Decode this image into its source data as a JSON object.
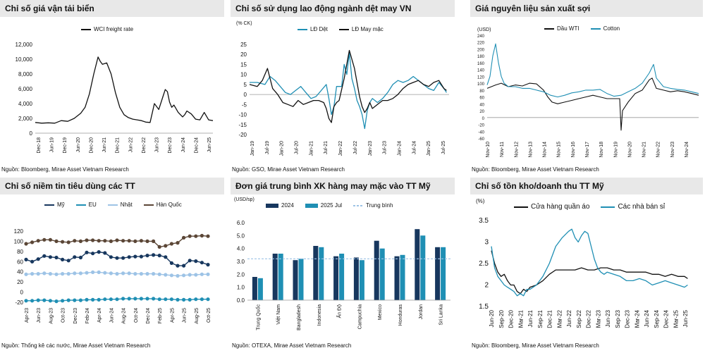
{
  "chart_data": [
    {
      "id": "p1",
      "type": "line",
      "title": "Chỉ số giá vận tải biển",
      "source": "Nguồn: Bloomberg, Mirae Asset Vietnam Research",
      "legend": [
        "WCI freight rate"
      ],
      "ylim": [
        0,
        12000
      ],
      "yticks": [
        0,
        2000,
        4000,
        6000,
        8000,
        10000,
        12000
      ],
      "ytick_labels": [
        "0",
        "2,000",
        "4,000",
        "6,000",
        "8,000",
        "10,000",
        "12,000"
      ],
      "xlim": [
        0,
        82
      ],
      "xtick_labels": [
        "Dec-18",
        "Jun-19",
        "Dec-19",
        "Jun-20",
        "Dec-20",
        "Jun-21",
        "Dec-21",
        "Jun-22",
        "Dec-22",
        "Jun-23",
        "Dec-23",
        "Jun-24",
        "Dec-24",
        "Jun-25"
      ],
      "colors": [
        "#111111"
      ],
      "series": [
        {
          "name": "WCI freight rate",
          "x": [
            0,
            3,
            6,
            9,
            12,
            15,
            18,
            21,
            23,
            25,
            27,
            29,
            30,
            31,
            33,
            35,
            37,
            39,
            41,
            43,
            45,
            47,
            49,
            51,
            53,
            55,
            57,
            59,
            60,
            61,
            62,
            63,
            64,
            66,
            68,
            69,
            70,
            72,
            74,
            76,
            78,
            80,
            82
          ],
          "y": [
            1450,
            1350,
            1400,
            1350,
            1700,
            1600,
            2000,
            2700,
            3500,
            5300,
            8000,
            10300,
            9700,
            9300,
            9500,
            8000,
            5500,
            3500,
            2500,
            2100,
            1900,
            1800,
            1700,
            1500,
            1450,
            4000,
            3200,
            5000,
            5900,
            5600,
            4200,
            3500,
            3800,
            2800,
            2200,
            2500,
            3000,
            2600,
            1900,
            1800,
            2800,
            1800,
            1700
          ]
        }
      ]
    },
    {
      "id": "p2",
      "type": "line",
      "title": "Chỉ số sử dụng lao động ngành dệt may VN",
      "source": "Nguồn: GSO, Mirae Asset Vietnam Research",
      "unit": "(% CK)",
      "legend": [
        "LĐ Dệt",
        "LĐ May mặc"
      ],
      "ylim": [
        -20,
        25
      ],
      "yticks": [
        -20,
        -15,
        -10,
        -5,
        0,
        5,
        10,
        15,
        20,
        25
      ],
      "ytick_labels": [
        "-20",
        "-15",
        "-10",
        "-5",
        "0",
        "5",
        "10",
        "15",
        "20",
        "25"
      ],
      "xlim": [
        0,
        78
      ],
      "xtick_labels": [
        "Jan-19",
        "Jul-19",
        "Jan-20",
        "Jul-20",
        "Jan-21",
        "Jul-21",
        "Jan-22",
        "Jul-22",
        "Jan-23",
        "Jul-23",
        "Jan-24",
        "Jul-24",
        "Jan-25",
        "Jul-25"
      ],
      "colors": [
        "#1f8fb4",
        "#111111"
      ],
      "series": [
        {
          "name": "LĐ Dệt",
          "x": [
            0,
            3,
            6,
            8,
            10,
            12,
            14,
            16,
            18,
            20,
            22,
            24,
            26,
            28,
            30,
            31,
            32,
            33,
            34,
            36,
            37,
            38,
            39,
            40,
            41,
            42,
            43,
            44,
            45,
            46,
            47,
            48,
            50,
            52,
            54,
            56,
            58,
            60,
            62,
            64,
            66,
            68,
            70,
            72,
            74,
            76,
            77
          ],
          "y": [
            6,
            6,
            5,
            9,
            7,
            4,
            1,
            0,
            2,
            4,
            1,
            -2,
            -1,
            2,
            5,
            -2,
            -10,
            -6,
            4,
            4,
            15,
            10,
            21,
            8,
            3,
            -3,
            -6,
            -10,
            -17,
            -8,
            -4,
            -2,
            -4,
            -2,
            1,
            5,
            7,
            6,
            7,
            9,
            7,
            5,
            3,
            2,
            6,
            3,
            1
          ]
        },
        {
          "name": "LĐ May mặc",
          "x": [
            0,
            3,
            5,
            7,
            9,
            11,
            13,
            15,
            17,
            19,
            21,
            23,
            25,
            27,
            29,
            30,
            31,
            32,
            33,
            34,
            35,
            37,
            39,
            41,
            43,
            44,
            45,
            46,
            47,
            48,
            50,
            52,
            54,
            56,
            58,
            60,
            62,
            64,
            66,
            68,
            70,
            72,
            74,
            76,
            77
          ],
          "y": [
            5,
            4,
            7,
            13,
            3,
            0,
            -4,
            -5,
            -6,
            -3,
            -5,
            -4,
            -3,
            -3,
            -4,
            -7,
            -12,
            -14,
            -6,
            -4,
            -3,
            8,
            22,
            13,
            -1,
            -6,
            -9,
            -7,
            -4,
            -7,
            -5,
            -3,
            -3,
            -2,
            0,
            3,
            5,
            6,
            7,
            5,
            4,
            6,
            7,
            3,
            2
          ]
        }
      ]
    },
    {
      "id": "p3",
      "type": "line",
      "title": "Giá nguyên liệu sản xuất sợi",
      "source": "Nguồn: Bloomberg, Mirae Asset Vietnam Research",
      "unit": "(USD)",
      "legend": [
        "Dầu WTI",
        "Cotton"
      ],
      "ylim": [
        -60,
        240
      ],
      "yticks": [
        -60,
        -40,
        -20,
        0,
        20,
        40,
        60,
        80,
        100,
        120,
        140,
        160,
        180,
        200,
        220,
        240
      ],
      "ytick_labels": [
        "-60",
        "-40",
        "-20",
        "0",
        "20",
        "40",
        "60",
        "80",
        "100",
        "120",
        "140",
        "160",
        "180",
        "200",
        "220",
        "240"
      ],
      "xlim": [
        0,
        15
      ],
      "xtick_labels": [
        "Nov-10",
        "Nov-11",
        "Nov-12",
        "Nov-13",
        "Nov-14",
        "Nov-15",
        "Nov-16",
        "Nov-17",
        "Nov-18",
        "Nov-19",
        "Nov-20",
        "Nov-21",
        "Nov-22",
        "Nov-23",
        "Nov-24"
      ],
      "colors": [
        "#111111",
        "#1f8fb4"
      ],
      "series": [
        {
          "name": "Dầu WTI",
          "x": [
            0,
            0.3,
            0.6,
            1,
            1.5,
            2,
            2.5,
            3,
            3.5,
            4,
            4.3,
            4.6,
            5,
            5.5,
            6,
            6.5,
            7,
            7.5,
            8,
            8.5,
            9,
            9.4,
            9.5,
            9.6,
            10,
            10.5,
            11,
            11.5,
            11.7,
            12,
            12.5,
            13,
            13.5,
            14,
            14.5,
            15
          ],
          "y": [
            85,
            90,
            95,
            100,
            90,
            95,
            92,
            100,
            98,
            80,
            60,
            45,
            40,
            45,
            50,
            55,
            60,
            65,
            60,
            55,
            55,
            55,
            -37,
            20,
            45,
            70,
            80,
            110,
            115,
            85,
            80,
            75,
            78,
            75,
            70,
            65
          ]
        },
        {
          "name": "Cotton",
          "x": [
            0,
            0.2,
            0.4,
            0.6,
            0.8,
            1,
            1.2,
            1.5,
            2,
            2.5,
            3,
            3.5,
            4,
            4.5,
            5,
            5.5,
            6,
            6.5,
            7,
            7.5,
            8,
            8.5,
            9,
            9.5,
            10,
            10.5,
            11,
            11.5,
            11.8,
            12,
            12.5,
            13,
            13.5,
            14,
            14.5,
            15
          ],
          "y": [
            95,
            120,
            180,
            215,
            160,
            120,
            100,
            90,
            90,
            85,
            85,
            80,
            75,
            65,
            60,
            65,
            72,
            75,
            80,
            80,
            82,
            70,
            62,
            65,
            75,
            85,
            100,
            130,
            155,
            115,
            90,
            85,
            82,
            80,
            75,
            70
          ]
        }
      ]
    },
    {
      "id": "p4",
      "type": "line",
      "title": "Chỉ số niềm tin tiêu dùng các TT",
      "source": "Nguồn: Thống kê các nước, Mirae Asset Vietnam Research",
      "legend": [
        "Mỹ",
        "EU",
        "Nhật",
        "Hàn Quốc"
      ],
      "ylim": [
        -20,
        120
      ],
      "yticks": [
        -20,
        0,
        20,
        40,
        60,
        80,
        100,
        120
      ],
      "ytick_labels": [
        "-20",
        "0",
        "20",
        "40",
        "60",
        "80",
        "100",
        "120"
      ],
      "xlim": [
        0,
        30
      ],
      "xtick_labels": [
        "Apr-23",
        "Jun-23",
        "Aug-23",
        "Oct-23",
        "Dec-23",
        "Feb-24",
        "Apr-24",
        "Jun-24",
        "Aug-24",
        "Oct-24",
        "Dec-24",
        "Feb-25",
        "Apr-25",
        "Jun-25",
        "Aug-25",
        "Oct-25"
      ],
      "colors": [
        "#17375e",
        "#1f8fb4",
        "#9dc3e6",
        "#5b4636"
      ],
      "series": [
        {
          "name": "Mỹ",
          "y": [
            64,
            60,
            65,
            71,
            69,
            68,
            64,
            62,
            69,
            68,
            78,
            76,
            79,
            77,
            69,
            67,
            67,
            69,
            70,
            70,
            72,
            73,
            72,
            69,
            57,
            52,
            52,
            62,
            61,
            58,
            54
          ]
        },
        {
          "name": "EU",
          "y": [
            -17,
            -17,
            -16,
            -16,
            -17,
            -18,
            -17,
            -16,
            -16,
            -16,
            -15,
            -15,
            -15,
            -14,
            -14,
            -14,
            -13,
            -13,
            -13,
            -13,
            -13,
            -13,
            -14,
            -14,
            -14,
            -15,
            -15,
            -15,
            -14,
            -14,
            -14
          ]
        },
        {
          "name": "Nhật",
          "y": [
            35,
            36,
            36,
            37,
            36,
            35,
            36,
            36,
            37,
            37,
            38,
            39,
            39,
            38,
            37,
            36,
            37,
            37,
            36,
            36,
            36,
            36,
            35,
            34,
            33,
            32,
            33,
            34,
            34,
            35,
            35
          ]
        },
        {
          "name": "Hàn Quốc",
          "y": [
            95,
            98,
            101,
            103,
            103,
            100,
            99,
            98,
            101,
            100,
            102,
            102,
            101,
            101,
            100,
            102,
            101,
            101,
            100,
            101,
            100,
            100,
            89,
            91,
            95,
            97,
            107,
            110,
            110,
            111,
            110
          ]
        }
      ]
    },
    {
      "id": "p5",
      "type": "bar",
      "title": "Đơn giá trung bình XK hàng may mặc vào TT Mỹ",
      "source": "Nguồn: OTEXA, Mirae Asset Vietnam Research",
      "unit": "(USD/sp)",
      "legend": [
        "2024",
        "2025 Jul",
        "Trung bình"
      ],
      "ylim": [
        0,
        6
      ],
      "yticks": [
        0,
        1,
        2,
        3,
        4,
        5,
        6
      ],
      "ytick_labels": [
        "0.0",
        "1.0",
        "2.0",
        "3.0",
        "4.0",
        "5.0",
        "6.0"
      ],
      "categories": [
        "Trung Quốc",
        "Việt Nam",
        "Bangladesh",
        "Indonesia",
        "Ấn Độ",
        "Campuchia",
        "Mexico",
        "Honduras",
        "Jordan",
        "Sri Lanka"
      ],
      "colors": [
        "#17375e",
        "#1f8fb4",
        "#9dc3e6"
      ],
      "series": [
        {
          "name": "2024",
          "values": [
            1.8,
            3.6,
            3.1,
            4.2,
            3.4,
            3.3,
            4.6,
            3.4,
            5.5,
            4.1
          ]
        },
        {
          "name": "2025 Jul",
          "values": [
            1.7,
            3.6,
            3.2,
            4.1,
            3.6,
            3.1,
            4.0,
            3.5,
            5.0,
            4.1
          ]
        }
      ],
      "average": 3.2
    },
    {
      "id": "p6",
      "type": "line",
      "title": "Chỉ số tồn kho/doanh thu TT Mỹ",
      "source": "Nguồn: Bloomberg, Mirae Asset Vietnam Research",
      "unit": "(%)",
      "legend": [
        "Cửa hàng quần áo",
        "Các nhà bán sỉ"
      ],
      "ylim": [
        1.5,
        3.5
      ],
      "yticks": [
        1.5,
        2,
        2.5,
        3,
        3.5
      ],
      "ytick_labels": [
        "1.5",
        "2",
        "2.5",
        "3",
        "3.5"
      ],
      "xlim": [
        0,
        62
      ],
      "xtick_labels": [
        "Jun-20",
        "Sep-20",
        "Dec-20",
        "Mar-21",
        "Jun-21",
        "Sep-21",
        "Dec-21",
        "Mar-22",
        "Jun-22",
        "Sep-22",
        "Dec-22",
        "Mar-23",
        "Jun-23",
        "Sep-23",
        "Dec-23",
        "Mar-24",
        "Jun-24",
        "Sep-24",
        "Dec-24",
        "Mar-25",
        "Jun-25"
      ],
      "colors": [
        "#111111",
        "#1f8fb4"
      ],
      "series": [
        {
          "name": "Cửa hàng quần áo",
          "x": [
            0,
            1,
            2,
            3,
            4,
            5,
            6,
            7,
            8,
            9,
            10,
            11,
            12,
            14,
            16,
            18,
            20,
            22,
            24,
            26,
            28,
            30,
            32,
            34,
            36,
            38,
            40,
            42,
            44,
            46,
            48,
            50,
            52,
            54,
            56,
            58,
            60,
            61
          ],
          "y": [
            2.8,
            2.5,
            2.3,
            2.2,
            2.25,
            2.1,
            2.0,
            2.0,
            1.85,
            1.8,
            1.9,
            1.85,
            1.95,
            2.0,
            2.1,
            2.25,
            2.35,
            2.35,
            2.35,
            2.35,
            2.4,
            2.35,
            2.35,
            2.4,
            2.4,
            2.35,
            2.35,
            2.3,
            2.3,
            2.3,
            2.3,
            2.25,
            2.25,
            2.2,
            2.25,
            2.2,
            2.2,
            2.15
          ]
        },
        {
          "name": "Các nhà bán sỉ",
          "x": [
            0,
            1,
            2,
            3,
            4,
            5,
            6,
            7,
            8,
            9,
            10,
            11,
            12,
            14,
            16,
            18,
            20,
            22,
            24,
            25,
            26,
            27,
            28,
            29,
            30,
            31,
            32,
            33,
            34,
            35,
            36,
            38,
            40,
            42,
            44,
            46,
            48,
            50,
            52,
            54,
            56,
            58,
            60,
            61
          ],
          "y": [
            2.9,
            2.4,
            2.2,
            2.1,
            2.0,
            1.95,
            1.9,
            1.85,
            1.75,
            1.8,
            1.75,
            1.9,
            1.9,
            2.0,
            2.2,
            2.5,
            2.9,
            3.1,
            3.25,
            3.3,
            3.1,
            3.0,
            3.15,
            3.25,
            3.2,
            2.9,
            2.6,
            2.4,
            2.3,
            2.25,
            2.3,
            2.25,
            2.2,
            2.1,
            2.1,
            2.15,
            2.1,
            2.0,
            2.05,
            2.1,
            2.05,
            2.0,
            1.95,
            2.0
          ]
        }
      ]
    }
  ]
}
